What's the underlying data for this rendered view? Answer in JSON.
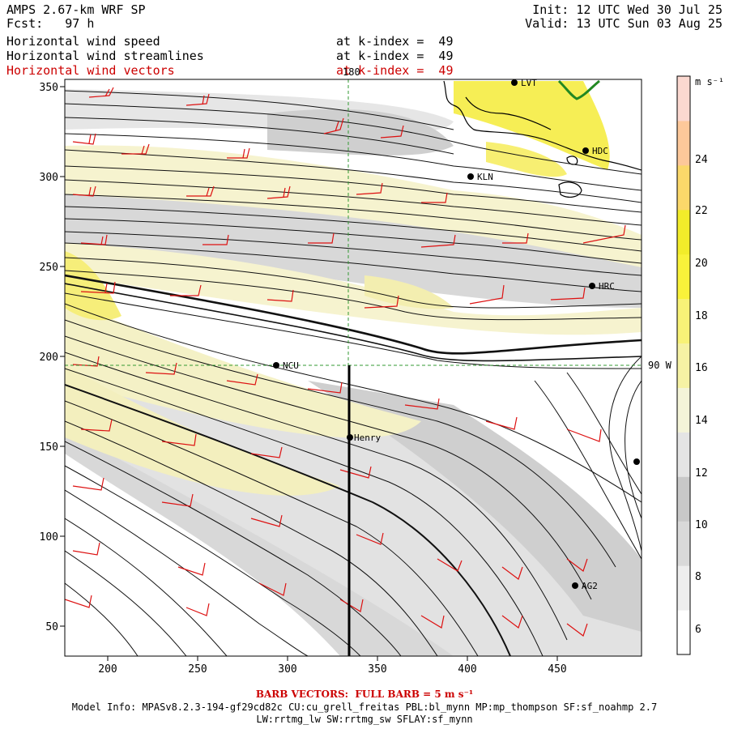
{
  "header": {
    "model": "AMPS 2.67-km WRF SP",
    "fcst": "Fcst:   97 h",
    "init": "Init: 12 UTC Wed 30 Jul 25",
    "valid": "Valid: 13 UTC Sun 03 Aug 25",
    "layers": [
      {
        "name": "Horizontal wind speed",
        "level": "at k-index =  49"
      },
      {
        "name": "Horizontal wind streamlines",
        "level": "at k-index =  49"
      },
      {
        "name": "Horizontal wind vectors",
        "level": "at k-index =  49"
      }
    ]
  },
  "map": {
    "x_ticks": [
      "200",
      "250",
      "300",
      "350",
      "400",
      "450"
    ],
    "y_ticks": [
      "50",
      "100",
      "150",
      "200",
      "250",
      "300",
      "350"
    ],
    "grid_label_top": "180",
    "grid_label_right": "90 W",
    "stations": [
      {
        "id": "KLN"
      },
      {
        "id": "HDC"
      },
      {
        "id": "HRC"
      },
      {
        "id": "NCU"
      },
      {
        "id": "Henry"
      },
      {
        "id": "AG2"
      },
      {
        "id": "LVT"
      }
    ]
  },
  "colorbar": {
    "unit_label": "m s⁻¹",
    "levels": [
      "24",
      "22",
      "20",
      "18",
      "16",
      "14",
      "12",
      "10",
      "8",
      "6"
    ],
    "colors": [
      "#ffffff",
      "#eeeeee",
      "#d9d9d9",
      "#c8c8c8",
      "#e4e4e4",
      "#f4f4d8",
      "#f6f2a4",
      "#f8f277",
      "#f9f23a",
      "#f2ec2a",
      "#fbd86a",
      "#fdc89a",
      "#fbd8d0"
    ]
  },
  "footer": {
    "barb": "BARB VECTORS:  FULL BARB = 5 m s⁻¹",
    "model_info": "Model Info: MPASv8.2.3-194-gf29cd82c CU:cu_grell_freitas PBL:bl_mynn MP:mp_thompson SF:sf_noahmp 2.7",
    "model_info2": "LW:rrtmg_lw SW:rrtmg_sw SFLAY:sf_mynn"
  }
}
